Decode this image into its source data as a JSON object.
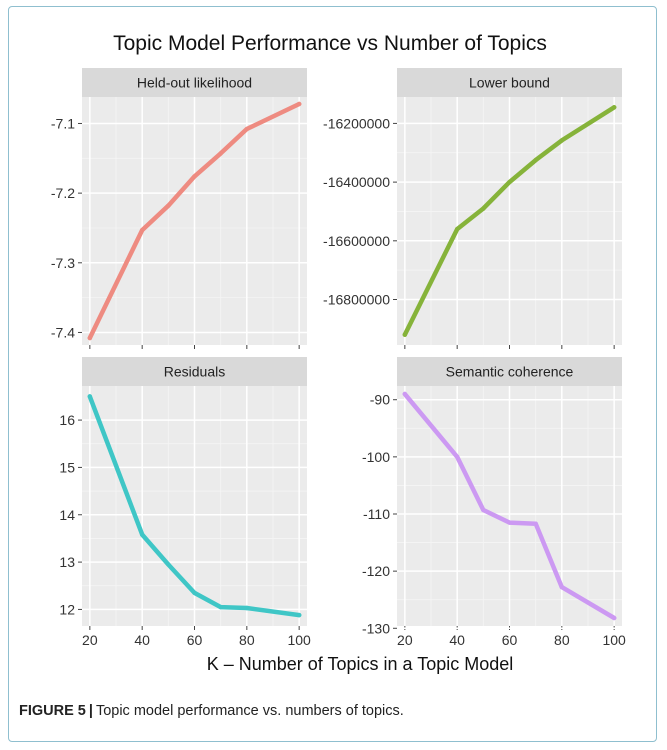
{
  "caption": {
    "label": "FIGURE 5",
    "separator": "|",
    "text": "Topic model performance vs. numbers of topics."
  },
  "chart_data": {
    "type": "line",
    "title": "Topic Model Performance vs Number of Topics",
    "xlabel": "K – Number of Topics in a Topic Model",
    "ylabel": "",
    "grid": true,
    "x": [
      20,
      40,
      50,
      60,
      70,
      80,
      100
    ],
    "x_ticks": [
      20,
      40,
      60,
      80,
      100
    ],
    "xlim": [
      17,
      103
    ],
    "panels": [
      {
        "name": "Held-out likelihood",
        "color": "#ee8b81",
        "values": [
          -7.408,
          -7.253,
          -7.218,
          -7.176,
          -7.143,
          -7.108,
          -7.072
        ],
        "ylim": [
          -7.418,
          -7.062
        ],
        "y_ticks": [
          -7.4,
          -7.3,
          -7.2,
          -7.1
        ],
        "y_tick_labels": [
          "-7.4",
          "-7.3",
          "-7.2",
          "-7.1"
        ]
      },
      {
        "name": "Lower bound",
        "color": "#86b33a",
        "values": [
          -16920000,
          -16560000,
          -16490000,
          -16400000,
          -16325000,
          -16258000,
          -16145000
        ],
        "ylim": [
          -16955000,
          -16110000
        ],
        "y_ticks": [
          -16800000,
          -16600000,
          -16400000,
          -16200000
        ],
        "y_tick_labels": [
          "-16800000",
          "-16600000",
          "-16400000",
          "-16200000"
        ]
      },
      {
        "name": "Residuals",
        "color": "#3fc6c6",
        "values": [
          16.5,
          13.58,
          12.95,
          12.35,
          12.05,
          12.03,
          11.88
        ],
        "ylim": [
          11.65,
          16.72
        ],
        "y_ticks": [
          12,
          13,
          14,
          15,
          16
        ],
        "y_tick_labels": [
          "12",
          "13",
          "14",
          "15",
          "16"
        ]
      },
      {
        "name": "Semantic coherence",
        "color": "#cc99f2",
        "values": [
          -89,
          -100,
          -109.3,
          -111.5,
          -111.7,
          -122.8,
          -128.2
        ],
        "ylim": [
          -129.6,
          -87.6
        ],
        "y_ticks": [
          -130,
          -120,
          -110,
          -100,
          -90
        ],
        "y_tick_labels": [
          "-130",
          "-120",
          "-110",
          "-100",
          "-90"
        ]
      }
    ]
  }
}
